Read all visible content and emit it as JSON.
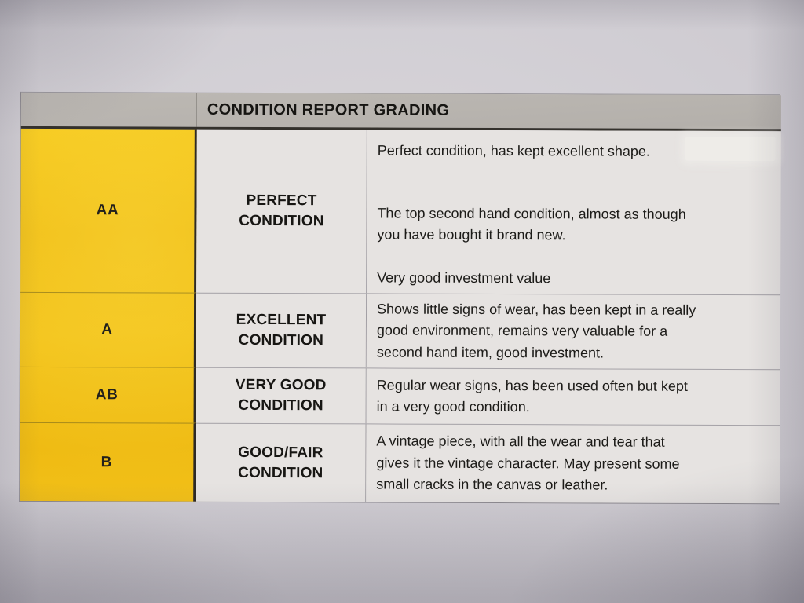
{
  "document": {
    "header": "CONDITION REPORT GRADING",
    "rows": [
      {
        "grade": "AA",
        "condition_lines": [
          "PERFECT",
          "CONDITION"
        ],
        "paragraphs": [
          [
            "Perfect condition, has kept excellent shape."
          ],
          [
            "The top second hand condition, almost as though",
            "you have bought it brand new."
          ],
          [
            "Very good investment value"
          ]
        ]
      },
      {
        "grade": "A",
        "condition_lines": [
          "EXCELLENT",
          "CONDITION"
        ],
        "paragraphs": [
          [
            "Shows little signs of wear, has been kept in a really",
            "good environment, remains very valuable for a",
            "second hand item, good investment."
          ]
        ]
      },
      {
        "grade": "AB",
        "condition_lines": [
          "VERY GOOD",
          "CONDITION"
        ],
        "paragraphs": [
          [
            "Regular wear signs, has been used often but kept",
            "in a very good condition."
          ]
        ]
      },
      {
        "grade": "B",
        "condition_lines": [
          "GOOD/FAIR",
          "CONDITION"
        ],
        "paragraphs": [
          [
            "A vintage piece, with all the wear and tear that",
            "gives it the vintage character. May present some",
            "small cracks in the canvas or leather."
          ]
        ]
      }
    ],
    "colors": {
      "grade_column_yellow": "#f2c01b",
      "header_bg": "#b7b3ae",
      "cell_bg": "#e6e3e1",
      "text": "#1b1a18",
      "paper_bg": "#cfccd2",
      "heavy_border": "#2d2a26",
      "light_border": "#a5a2a7"
    }
  }
}
